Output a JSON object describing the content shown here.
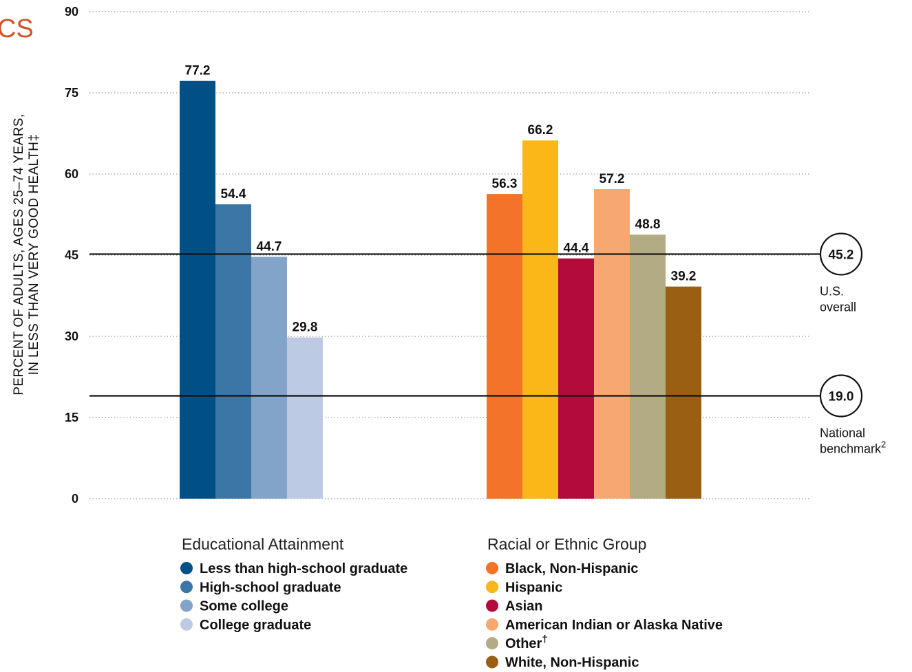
{
  "corner_fragment": "CS",
  "chart_data": {
    "type": "bar",
    "ylabel_lines": [
      "PERCENT OF ADULTS, AGES 25–74 YEARS,",
      "IN LESS THAN VERY GOOD HEALTH‡"
    ],
    "ylim": [
      0,
      90
    ],
    "yticks": [
      0,
      15,
      30,
      45,
      60,
      75,
      90
    ],
    "grid": true,
    "groups": [
      {
        "title": "Educational Attainment",
        "series": [
          {
            "name": "Less than high-school graduate",
            "value": 77.2,
            "label": "77.2",
            "color": "#005088"
          },
          {
            "name": "High-school graduate",
            "value": 54.4,
            "label": "54.4",
            "color": "#3b76a6"
          },
          {
            "name": "Some college",
            "value": 44.7,
            "label": "44.7",
            "color": "#82a4c8"
          },
          {
            "name": "College graduate",
            "value": 29.8,
            "label": "29.8",
            "color": "#bccbe3"
          }
        ]
      },
      {
        "title": "Racial or Ethnic Group",
        "series": [
          {
            "name": "Black, Non-Hispanic",
            "value": 56.3,
            "label": "56.3",
            "color": "#f37428"
          },
          {
            "name": "Hispanic",
            "value": 66.2,
            "label": "66.2",
            "color": "#fbb618"
          },
          {
            "name": "Asian",
            "value": 44.4,
            "label": "44.4",
            "color": "#b30c3c"
          },
          {
            "name": "American Indian or Alaska Native",
            "value": 57.2,
            "label": "57.2",
            "color": "#f7a870"
          },
          {
            "name": "Other",
            "name_suffix": "†",
            "value": 48.8,
            "label": "48.8",
            "color": "#b3ab83"
          },
          {
            "name": "White, Non-Hispanic",
            "value": 39.2,
            "label": "39.2",
            "color": "#9a5f13"
          }
        ]
      }
    ],
    "reference_lines": [
      {
        "value": 45.2,
        "label": "45.2",
        "caption_lines": [
          "U.S.",
          "overall"
        ]
      },
      {
        "value": 19.0,
        "label": "19.0",
        "caption_lines": [
          "National",
          "benchmark"
        ],
        "caption_sup": "2"
      }
    ]
  },
  "colors": {
    "accent": "#d0532a",
    "line": "#111111"
  }
}
